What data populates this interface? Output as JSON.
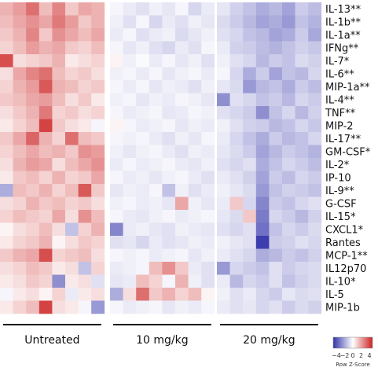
{
  "chart_data": {
    "type": "heatmap",
    "rows": [
      "IL-13**",
      "IL-1b**",
      "IL-1a**",
      "IFNg**",
      "IL-7*",
      "IL-6**",
      "MIP-1a**",
      "IL-4**",
      "TNF**",
      "MIP-2",
      "IL-17**",
      "GM-CSF*",
      "IL-2*",
      "IP-10",
      "IL-9**",
      "G-CSF",
      "IL-15*",
      "CXCL1*",
      "Rantes",
      "MCP-1**",
      "IL12p70",
      "IL-10*",
      "IL-5",
      "MIP-1b"
    ],
    "groups": [
      {
        "label": "Untreated",
        "n_columns": 8
      },
      {
        "label": "10 mg/kg",
        "n_columns": 8
      },
      {
        "label": "20 mg/kg",
        "n_columns": 8
      }
    ],
    "values": [
      [
        1.4,
        1.8,
        2.6,
        1.2,
        2.2,
        1.0,
        1.6,
        1.4,
        -0.2,
        -0.4,
        -0.6,
        -0.3,
        -0.5,
        -0.2,
        -0.8,
        -0.4,
        -0.5,
        -0.9,
        -1.2,
        -1.6,
        -1.4,
        -1.8,
        -1.0,
        -1.3
      ],
      [
        1.2,
        1.6,
        2.0,
        1.6,
        2.4,
        1.8,
        1.0,
        1.4,
        -0.3,
        -0.6,
        -0.2,
        -0.8,
        -0.4,
        -0.6,
        -0.3,
        -0.5,
        -0.7,
        -1.0,
        -1.4,
        -1.8,
        -1.6,
        -2.0,
        -1.2,
        -1.5
      ],
      [
        1.0,
        1.4,
        2.2,
        1.0,
        2.0,
        1.6,
        1.2,
        1.6,
        -0.4,
        -0.2,
        -0.6,
        -0.4,
        -0.3,
        -0.7,
        -0.5,
        -0.3,
        -0.6,
        -0.8,
        -1.2,
        -1.4,
        -1.8,
        -1.6,
        -1.0,
        -1.7
      ],
      [
        0.8,
        1.2,
        1.8,
        1.4,
        1.6,
        1.0,
        0.8,
        1.2,
        -0.2,
        -0.5,
        -0.3,
        -0.6,
        -0.8,
        -0.4,
        -0.6,
        -0.2,
        -0.4,
        -0.9,
        -1.0,
        -1.3,
        -1.5,
        -1.2,
        -0.9,
        -1.1
      ],
      [
        3.2,
        0.6,
        0.8,
        1.0,
        1.4,
        0.4,
        0.6,
        0.8,
        0.2,
        -0.3,
        -0.1,
        -0.4,
        -0.2,
        -0.5,
        -0.3,
        -0.6,
        -0.3,
        -0.6,
        -0.8,
        -1.4,
        -1.0,
        -1.2,
        -0.7,
        -0.9
      ],
      [
        0.6,
        1.6,
        2.2,
        2.6,
        1.2,
        0.8,
        1.0,
        0.6,
        -0.3,
        -0.2,
        -0.4,
        -0.2,
        -0.5,
        -0.3,
        -0.2,
        -0.4,
        -0.2,
        -0.8,
        -1.6,
        -1.0,
        -1.8,
        -1.2,
        -1.4,
        -0.8
      ],
      [
        0.8,
        1.4,
        1.8,
        3.0,
        1.4,
        1.2,
        0.8,
        1.0,
        -0.2,
        -0.4,
        -0.2,
        -0.5,
        -0.3,
        -0.4,
        -0.6,
        -0.3,
        -0.5,
        -0.7,
        -2.0,
        -1.4,
        -1.2,
        -1.6,
        -1.0,
        -1.3
      ],
      [
        1.0,
        1.2,
        1.6,
        1.8,
        1.2,
        0.6,
        1.0,
        0.4,
        -0.3,
        -0.2,
        -0.5,
        -0.3,
        -0.4,
        -0.2,
        -0.3,
        -0.5,
        -2.2,
        -0.6,
        -0.8,
        -1.2,
        -1.0,
        -1.4,
        -0.8,
        -1.0
      ],
      [
        0.6,
        1.0,
        1.4,
        2.4,
        0.8,
        1.0,
        0.6,
        0.8,
        -0.2,
        -0.4,
        -0.3,
        -0.2,
        -0.5,
        -0.4,
        -0.2,
        -0.3,
        -0.6,
        -0.8,
        -1.0,
        -2.2,
        -1.2,
        -0.8,
        -1.4,
        -0.9
      ],
      [
        0.4,
        0.8,
        1.2,
        3.4,
        1.0,
        0.6,
        0.4,
        -0.2,
        0.2,
        -0.2,
        -0.4,
        -0.3,
        -0.2,
        -0.5,
        -0.3,
        -0.4,
        -0.3,
        -0.6,
        -0.9,
        -1.0,
        -1.4,
        -1.2,
        -0.8,
        -1.1
      ],
      [
        1.0,
        1.6,
        2.8,
        1.4,
        0.8,
        2.6,
        1.2,
        1.0,
        -0.2,
        -0.3,
        -0.2,
        -0.4,
        -0.6,
        -0.3,
        -0.5,
        -0.2,
        -0.4,
        -0.8,
        -1.2,
        -1.6,
        -1.0,
        -1.4,
        -1.2,
        -0.8
      ],
      [
        0.8,
        1.2,
        1.6,
        1.2,
        1.4,
        1.0,
        2.0,
        1.8,
        -0.3,
        -0.5,
        -0.3,
        -0.2,
        -0.4,
        -0.6,
        -0.3,
        -0.4,
        -0.5,
        -0.7,
        -1.0,
        -1.8,
        -1.4,
        -1.0,
        -1.2,
        -1.5
      ],
      [
        0.6,
        1.4,
        1.8,
        1.6,
        0.6,
        1.2,
        1.6,
        2.0,
        -0.4,
        -0.2,
        -0.4,
        -0.3,
        -0.2,
        -0.4,
        -0.5,
        -0.3,
        -0.6,
        -0.8,
        -0.6,
        -1.6,
        -1.2,
        -0.8,
        -1.0,
        -1.3
      ],
      [
        0.4,
        1.0,
        1.2,
        0.8,
        1.4,
        0.8,
        1.0,
        1.6,
        -0.2,
        -0.4,
        -0.3,
        -0.5,
        -0.3,
        -0.2,
        -0.4,
        -0.6,
        -0.4,
        -0.6,
        -0.9,
        -1.8,
        -1.0,
        -1.3,
        -0.8,
        -1.0
      ],
      [
        -1.6,
        1.2,
        1.0,
        1.4,
        0.8,
        1.2,
        3.0,
        1.0,
        -0.5,
        -0.3,
        -0.4,
        -0.2,
        -1.2,
        -0.3,
        -0.6,
        -0.4,
        -0.3,
        -0.5,
        -0.7,
        -2.0,
        -1.2,
        -0.9,
        -1.0,
        -1.2
      ],
      [
        0.6,
        0.8,
        1.4,
        1.0,
        1.2,
        0.8,
        1.0,
        0.6,
        -0.3,
        -0.2,
        -0.4,
        -0.3,
        -0.5,
        1.6,
        -0.3,
        -0.5,
        -0.4,
        1.0,
        -0.8,
        -2.4,
        -1.0,
        -1.2,
        -0.8,
        -0.6
      ],
      [
        0.8,
        1.2,
        1.0,
        0.8,
        1.6,
        0.6,
        2.0,
        1.2,
        -0.2,
        -0.4,
        -0.5,
        -0.3,
        -0.2,
        -0.4,
        -0.3,
        -0.2,
        -0.5,
        -0.7,
        1.0,
        -2.6,
        -0.8,
        -1.0,
        -1.4,
        -0.9
      ],
      [
        0.2,
        0.6,
        0.8,
        1.2,
        0.6,
        -1.2,
        0.8,
        1.4,
        -2.4,
        -0.4,
        -0.3,
        -0.5,
        -0.6,
        -0.3,
        -0.4,
        -0.5,
        -0.6,
        -0.8,
        -0.6,
        -2.8,
        -1.2,
        -0.8,
        -1.0,
        -0.7
      ],
      [
        0.4,
        0.8,
        1.0,
        1.4,
        0.2,
        0.6,
        1.0,
        0.8,
        -0.6,
        -0.5,
        -0.8,
        -0.4,
        -0.6,
        -0.5,
        -0.3,
        -0.4,
        -0.3,
        -0.5,
        -0.6,
        -3.8,
        -1.0,
        -0.9,
        -0.6,
        -0.8
      ],
      [
        1.0,
        1.4,
        1.6,
        3.2,
        0.8,
        1.0,
        1.2,
        0.6,
        -0.2,
        -0.3,
        -0.2,
        -0.4,
        -0.3,
        -0.2,
        -0.5,
        -0.3,
        -0.4,
        -0.6,
        -0.8,
        -1.6,
        -1.4,
        -1.0,
        -1.2,
        -0.9
      ],
      [
        0.6,
        0.8,
        1.2,
        1.0,
        0.4,
        0.6,
        -1.2,
        0.8,
        -0.4,
        -0.3,
        -0.2,
        1.2,
        2.0,
        1.0,
        -0.4,
        -0.6,
        -2.0,
        -0.8,
        -1.0,
        -1.2,
        -0.6,
        -1.0,
        -0.8,
        -0.7
      ],
      [
        0.4,
        0.6,
        1.0,
        0.8,
        -2.2,
        0.4,
        0.6,
        -0.6,
        -0.5,
        -0.4,
        1.2,
        0.8,
        -0.2,
        1.4,
        -0.3,
        -0.6,
        -0.4,
        -1.4,
        -0.8,
        -1.0,
        -0.6,
        -1.2,
        -0.9,
        -0.7
      ],
      [
        -0.2,
        0.4,
        0.6,
        0.2,
        0.8,
        -0.4,
        0.4,
        0.6,
        -1.6,
        0.6,
        2.6,
        1.0,
        1.4,
        0.8,
        1.2,
        0.2,
        -0.3,
        -0.6,
        -0.4,
        -0.8,
        -1.0,
        -0.5,
        -0.7,
        -0.6
      ],
      [
        0.4,
        0.8,
        1.2,
        3.4,
        0.6,
        0.4,
        -0.2,
        -2.0,
        -0.2,
        -0.4,
        -0.3,
        -0.2,
        -0.5,
        -0.3,
        -0.4,
        -0.2,
        -0.4,
        -0.6,
        -0.5,
        -0.8,
        -0.6,
        -1.0,
        -0.7,
        -0.9
      ]
    ],
    "colors": {
      "low": "#3333aa",
      "mid": "#ffffff",
      "high": "#cc2222"
    },
    "value_range": [
      -4,
      4
    ],
    "color_key": {
      "title": "Row Z-Score",
      "ticks": [
        "−4",
        "−2",
        "0",
        "2",
        "4"
      ]
    }
  }
}
